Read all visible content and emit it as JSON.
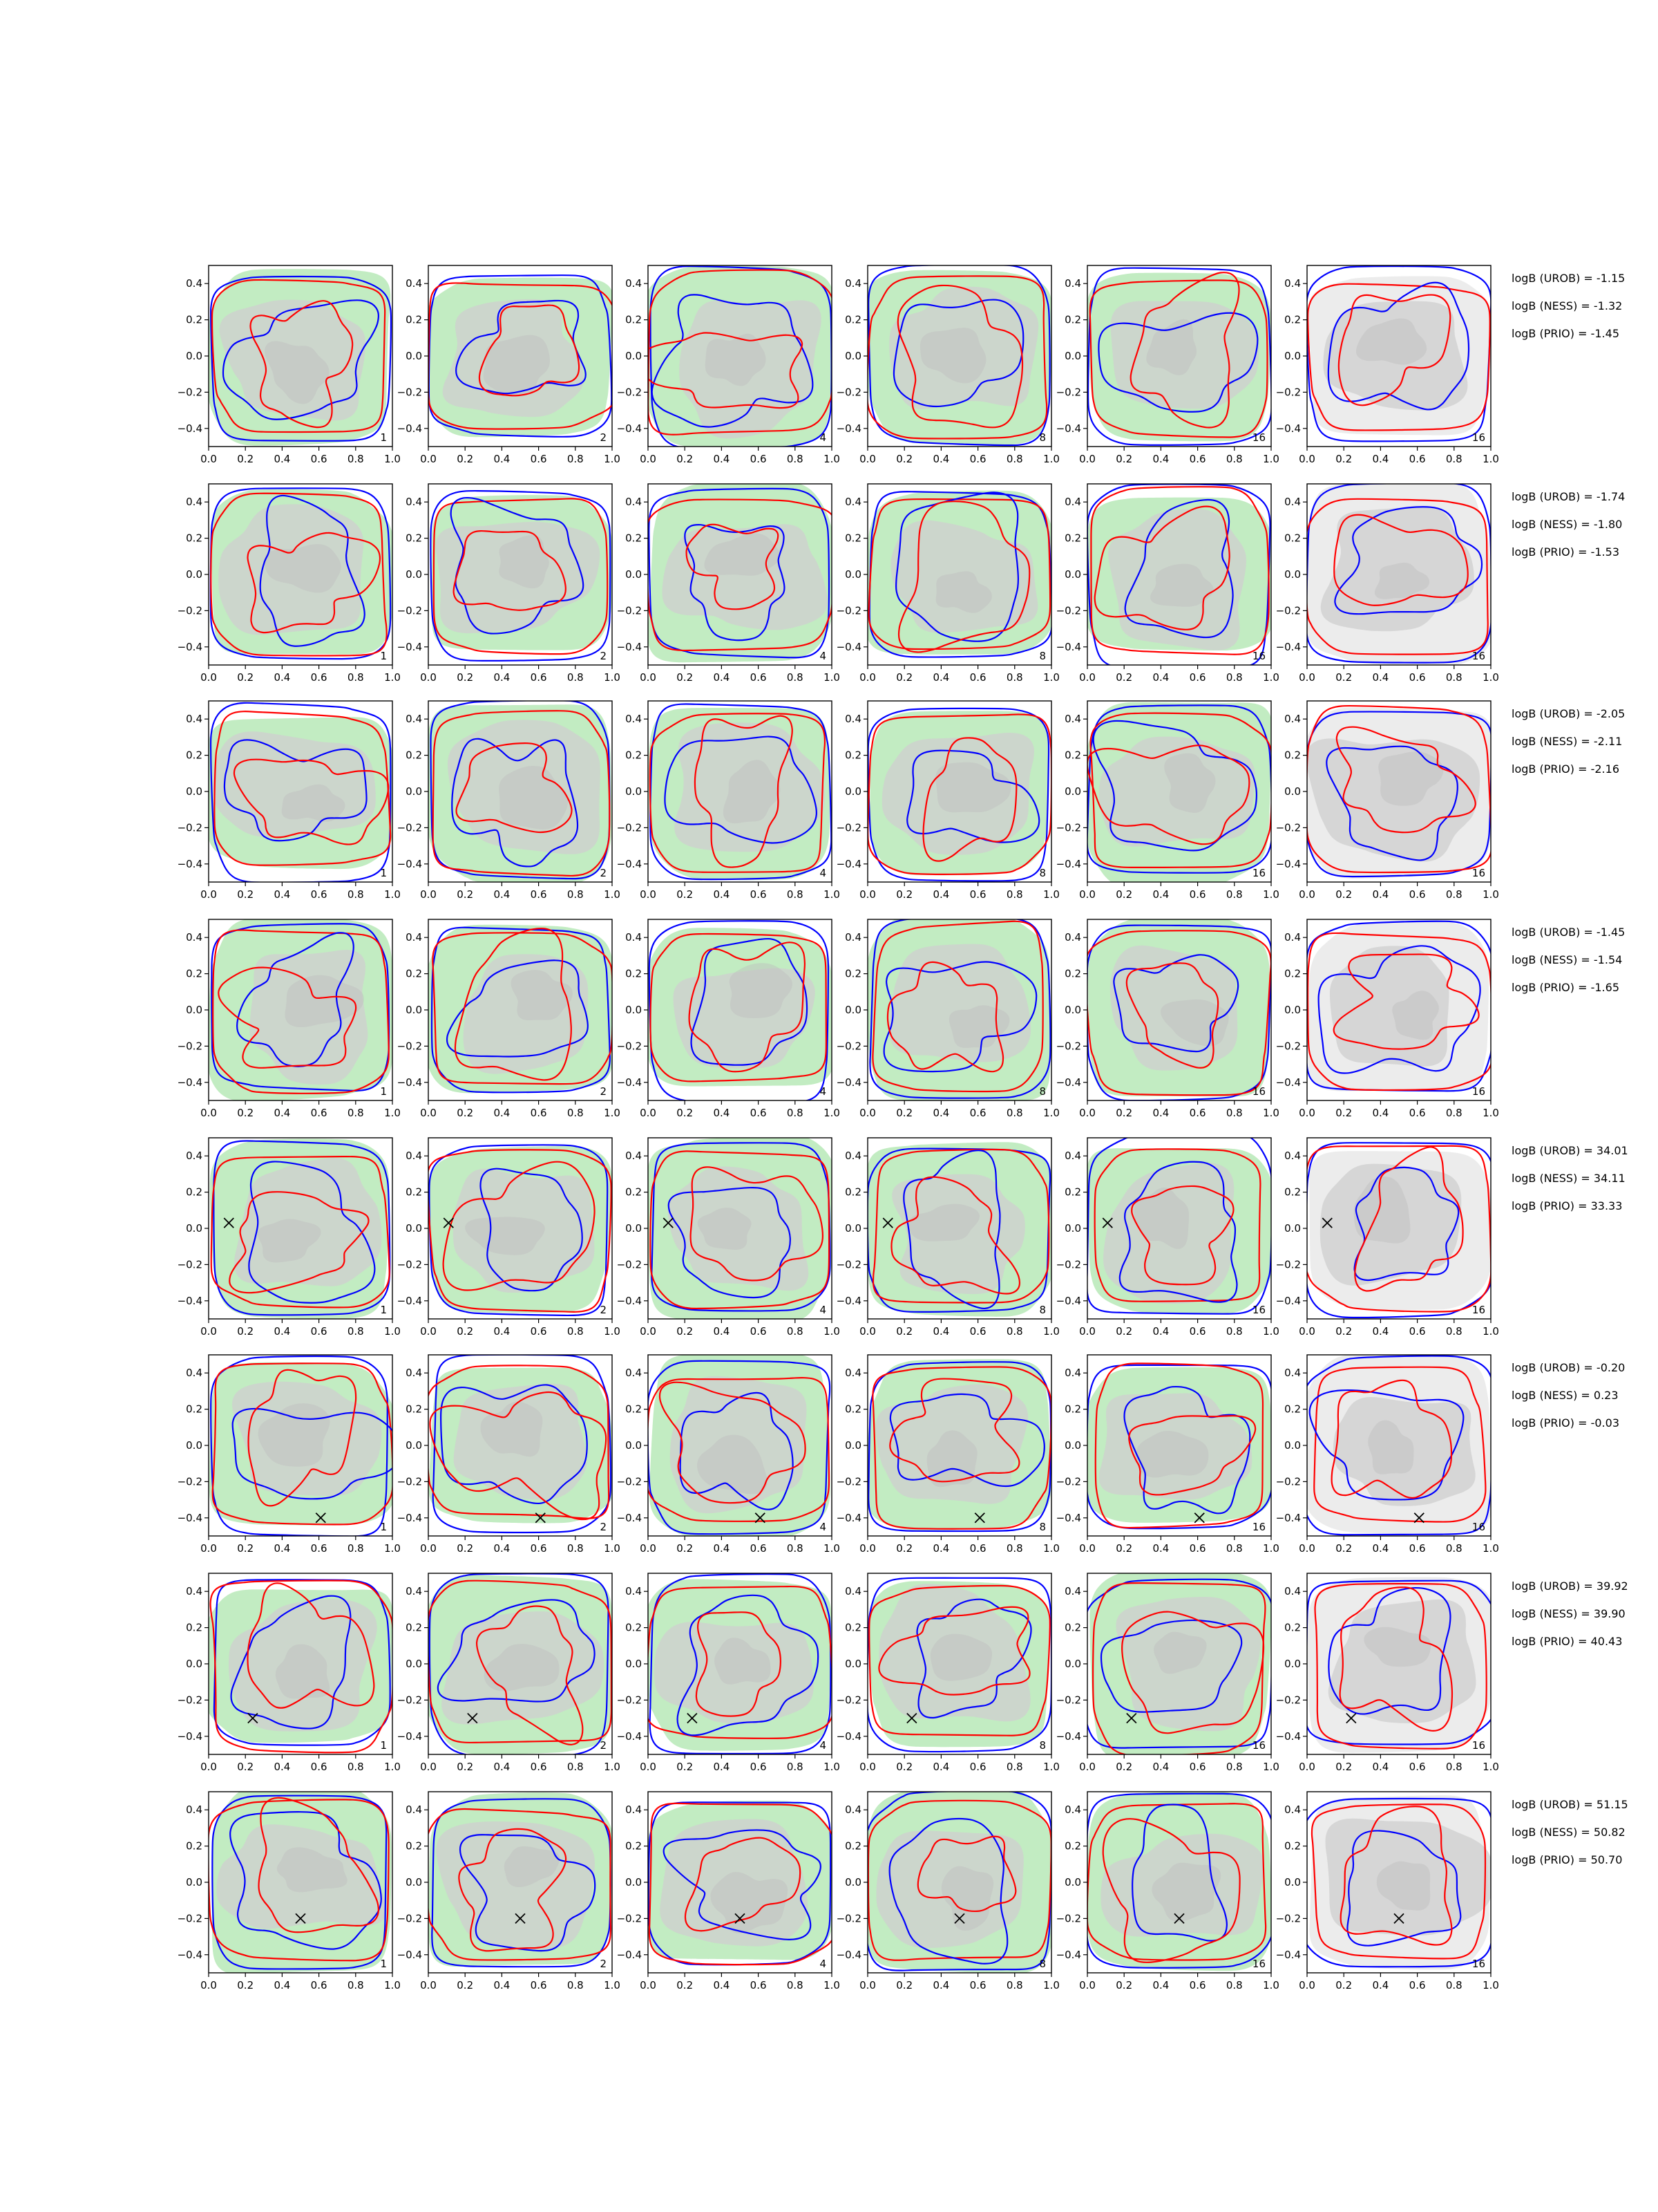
{
  "chart_data": {
    "type": "contour",
    "grid": false,
    "xlim": [
      0.0,
      1.0
    ],
    "ylim": [
      -0.5,
      0.5
    ],
    "x_ticks": [
      "0.0",
      "0.2",
      "0.4",
      "0.6",
      "0.8",
      "1.0"
    ],
    "y_ticks": [
      "0.4",
      "0.2",
      "0.0",
      "−0.2",
      "−0.4"
    ],
    "y_tick_values": [
      0.4,
      0.2,
      0.0,
      -0.2,
      -0.4
    ],
    "x_tick_values": [
      0.0,
      0.2,
      0.4,
      0.6,
      0.8,
      1.0
    ],
    "column_labels": [
      "1",
      "2",
      "4",
      "8",
      "16",
      "16"
    ],
    "colors": {
      "red_contour": "#ff0000",
      "blue_contour": "#0000ff",
      "green_fill": "#c2ecc2",
      "gray_fill": "#cfcfcf",
      "light_gray_fill": "#ececec",
      "marker": "#000000"
    },
    "rows": [
      {
        "marker": null,
        "logB": [
          "logB (UROB) = -1.15",
          "logB (NESS) = -1.32",
          "logB (PRIO) = -1.45"
        ]
      },
      {
        "marker": null,
        "logB": [
          "logB (UROB) = -1.74",
          "logB (NESS) = -1.80",
          "logB (PRIO) = -1.53"
        ]
      },
      {
        "marker": null,
        "logB": [
          "logB (UROB) = -2.05",
          "logB (NESS) = -2.11",
          "logB (PRIO) = -2.16"
        ]
      },
      {
        "marker": null,
        "logB": [
          "logB (UROB) = -1.45",
          "logB (NESS) = -1.54",
          "logB (PRIO) = -1.65"
        ]
      },
      {
        "marker": [
          0.11,
          0.03
        ],
        "logB": [
          "logB (UROB) = 34.01",
          "logB (NESS) = 34.11",
          "logB (PRIO) = 33.33"
        ]
      },
      {
        "marker": [
          0.61,
          -0.4
        ],
        "logB": [
          "logB (UROB) = -0.20",
          "logB (NESS) = 0.23",
          "logB (PRIO) = -0.03"
        ]
      },
      {
        "marker": [
          0.24,
          -0.3
        ],
        "logB": [
          "logB (UROB) = 39.92",
          "logB (NESS) = 39.90",
          "logB (PRIO) = 40.43"
        ]
      },
      {
        "marker": [
          0.5,
          -0.2
        ],
        "logB": [
          "logB (UROB) = 51.15",
          "logB (NESS) = 50.82",
          "logB (PRIO) = 50.70"
        ]
      }
    ]
  }
}
